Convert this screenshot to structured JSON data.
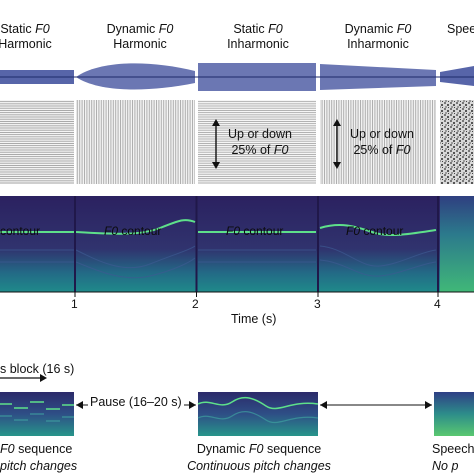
{
  "conditions": [
    {
      "name": "static-harmonic",
      "line1_pre": "Static ",
      "line1_em": "F0",
      "line1_post": "",
      "line2": "Harmonic"
    },
    {
      "name": "dynamic-harmonic",
      "line1_pre": "Dynamic ",
      "line1_em": "F0",
      "line1_post": "",
      "line2": "Harmonic"
    },
    {
      "name": "static-inharmonic",
      "line1_pre": "Static ",
      "line1_em": "F0",
      "line1_post": "",
      "line2": "Inharmonic"
    },
    {
      "name": "dynamic-inharmonic",
      "line1_pre": "Dynamic ",
      "line1_em": "F0",
      "line1_post": "",
      "line2": "Inharmonic"
    },
    {
      "name": "speech",
      "line1_pre": "Speec",
      "line1_em": "",
      "line1_post": "",
      "line2": ""
    }
  ],
  "annotations": {
    "jitter_line1": "Up or down",
    "jitter_line2_pre": "25% of ",
    "jitter_line2_em": "F0"
  },
  "contour_label": {
    "em": "F0",
    "text": " contour"
  },
  "contour_label_cut": "contour",
  "time_axis": {
    "label": "Time (s)",
    "ticks": [
      "1",
      "2",
      "3",
      "4"
    ]
  },
  "block": {
    "label": "s block (16 s)",
    "pause_label": "Pause (16–20 s)"
  },
  "sequences": [
    {
      "name": "static",
      "title_em": "F0",
      "title_post": " sequence",
      "subtitle": "pitch changes"
    },
    {
      "name": "dynamic",
      "title_pre": "Dynamic ",
      "title_em": "F0",
      "title_post": " sequence",
      "subtitle": "Continuous pitch changes"
    },
    {
      "name": "speech",
      "title": "Speech",
      "subtitle": "No p"
    }
  ],
  "colors": {
    "waveform": "#3a4a9a",
    "spectro_bg": "#2d1c5c",
    "spectro_contour": "#5ee08a",
    "spectro_mid": "#2a7f8e"
  }
}
